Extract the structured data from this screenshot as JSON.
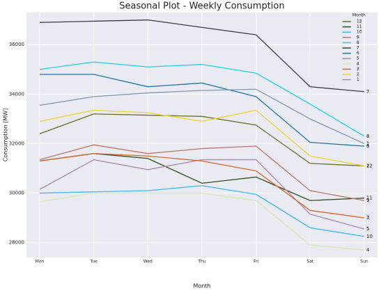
{
  "chart_data": {
    "type": "line",
    "title": "Seasonal Plot - Weekly Consumption",
    "x_label": "Month",
    "y_label": "Consumption [MW]",
    "legend_title": "Month",
    "legend": "upper right",
    "grid": true,
    "categories": [
      "Mon",
      "Tue",
      "Wed",
      "Thu",
      "Fri",
      "Sat",
      "Sun"
    ],
    "ylim": [
      27400,
      37300
    ],
    "yticks": [
      28000,
      30000,
      32000,
      34000,
      36000
    ],
    "series": [
      {
        "name": "12",
        "color": "#6e6e22",
        "values": [
          32400,
          33200,
          33150,
          33100,
          32750,
          31200,
          31100
        ]
      },
      {
        "name": "11",
        "color": "#2d4f16",
        "values": [
          31300,
          31600,
          31400,
          30400,
          30650,
          29700,
          29800
        ]
      },
      {
        "name": "10",
        "color": "#3cb8ee",
        "values": [
          30000,
          30050,
          30100,
          30300,
          29950,
          28600,
          28250
        ]
      },
      {
        "name": "9",
        "color": "#b8786a",
        "values": [
          31350,
          31950,
          31600,
          31800,
          31900,
          30100,
          29700
        ]
      },
      {
        "name": "8",
        "color": "#18d4e8",
        "values": [
          35000,
          35300,
          35100,
          35200,
          34850,
          33600,
          32300
        ]
      },
      {
        "name": "7",
        "color": "#3a3a48",
        "values": [
          36900,
          36950,
          37000,
          36700,
          36400,
          34300,
          34100
        ]
      },
      {
        "name": "6",
        "color": "#1f78a6",
        "values": [
          34800,
          34800,
          34300,
          34450,
          33900,
          32050,
          31900
        ]
      },
      {
        "name": "5",
        "color": "#a88aa8",
        "values": [
          30150,
          31350,
          30950,
          31350,
          31350,
          29150,
          28550
        ]
      },
      {
        "name": "4",
        "color": "#d4eeae",
        "values": [
          29650,
          30000,
          30000,
          30000,
          29700,
          27900,
          27700
        ]
      },
      {
        "name": "3",
        "color": "#d8682a",
        "values": [
          31300,
          31600,
          31500,
          31300,
          30900,
          29300,
          29000
        ]
      },
      {
        "name": "2",
        "color": "#f0d62c",
        "values": [
          32900,
          33350,
          33250,
          32900,
          33350,
          31500,
          31100
        ]
      },
      {
        "name": "1",
        "color": "#8197b0",
        "values": [
          33550,
          33900,
          34050,
          34150,
          34200,
          33000,
          32000
        ]
      }
    ]
  }
}
